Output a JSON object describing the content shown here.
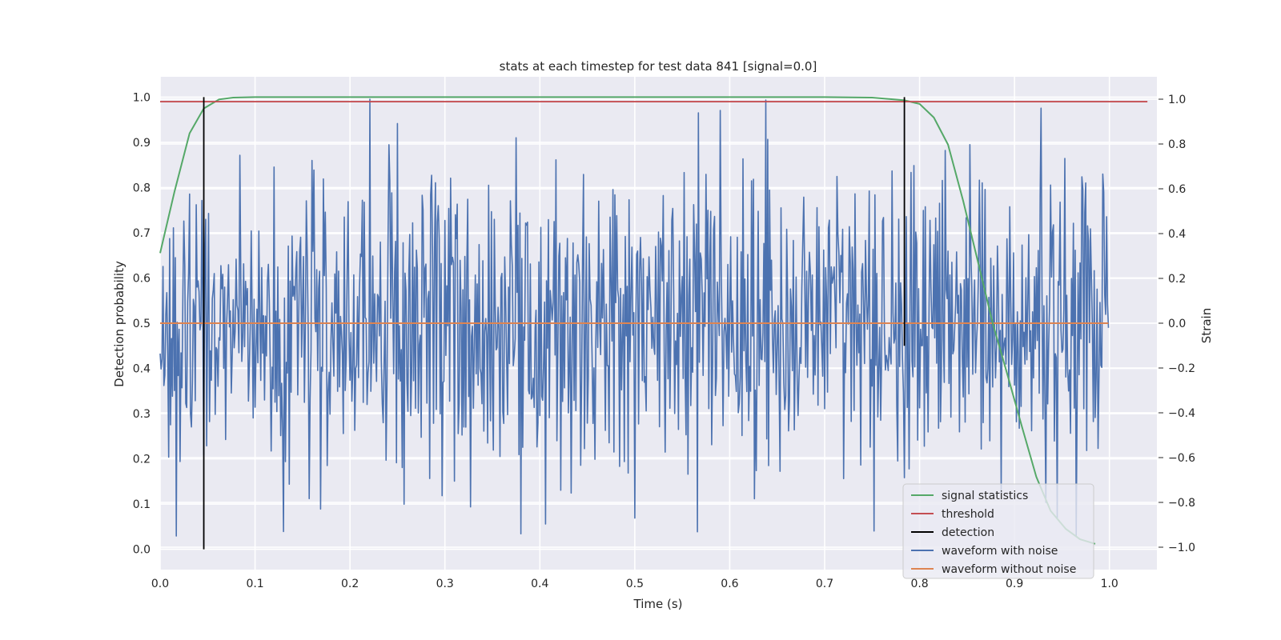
{
  "chart_data": {
    "type": "line",
    "title": "stats at each timestep for test data 841 [signal=0.0]",
    "xlabel": "Time (s)",
    "ylabel": "Detection probability",
    "y2label": "Strain",
    "xlim": [
      0.0,
      1.05
    ],
    "ylim": [
      -0.045,
      1.045
    ],
    "y2lim": [
      -1.1,
      1.1
    ],
    "xticks": [
      "0.0",
      "0.1",
      "0.2",
      "0.3",
      "0.4",
      "0.5",
      "0.6",
      "0.7",
      "0.8",
      "0.9",
      "1.0"
    ],
    "yticks": [
      "0.0",
      "0.1",
      "0.2",
      "0.3",
      "0.4",
      "0.5",
      "0.6",
      "0.7",
      "0.8",
      "0.9",
      "1.0"
    ],
    "y2ticks": [
      "−1.0",
      "−0.8",
      "−0.6",
      "−0.4",
      "−0.2",
      "0.0",
      "0.2",
      "0.4",
      "0.6",
      "0.8",
      "1.0"
    ],
    "grid": true,
    "background": "#eaeaf2",
    "legend_position": "bottom-right",
    "series": [
      {
        "name": "signal statistics",
        "color": "#55a868",
        "axis": "left",
        "x": [
          0.0,
          0.015,
          0.031,
          0.046,
          0.062,
          0.077,
          0.1,
          0.2,
          0.3,
          0.4,
          0.5,
          0.6,
          0.7,
          0.75,
          0.768,
          0.784,
          0.8,
          0.815,
          0.83,
          0.846,
          0.861,
          0.877,
          0.892,
          0.908,
          0.923,
          0.938,
          0.954,
          0.969,
          0.985
        ],
        "y": [
          0.655,
          0.79,
          0.92,
          0.975,
          0.995,
          0.999,
          1.0,
          1.0,
          1.0,
          1.0,
          1.0,
          1.0,
          1.0,
          0.999,
          0.996,
          0.993,
          0.985,
          0.955,
          0.895,
          0.77,
          0.64,
          0.5,
          0.39,
          0.27,
          0.16,
          0.085,
          0.045,
          0.022,
          0.012
        ]
      },
      {
        "name": "threshold",
        "color": "#c44e52",
        "axis": "left",
        "x": [
          0.0,
          1.04
        ],
        "y": [
          0.99,
          0.99
        ]
      },
      {
        "name": "detection",
        "color": "#000000",
        "axis": "left",
        "segments": [
          {
            "x": 0.046,
            "y0": 0.0,
            "y1": 1.0
          },
          {
            "x": 0.784,
            "y0": 0.45,
            "y1": 1.0
          }
        ]
      },
      {
        "name": "waveform with noise",
        "color": "#4c72b0",
        "axis": "right",
        "n_points": 1000,
        "x_range": [
          0.0,
          0.999
        ],
        "notable_points": [
          {
            "x": 0.221,
            "y": 1.0
          },
          {
            "x": 0.38,
            "y": -0.94
          },
          {
            "x": 0.13,
            "y": -0.93
          },
          {
            "x": 0.5,
            "y": -0.87
          },
          {
            "x": 0.59,
            "y": 0.95
          },
          {
            "x": 0.928,
            "y": 0.96
          },
          {
            "x": 0.933,
            "y": -0.8
          },
          {
            "x": 0.327,
            "y": -0.82
          }
        ],
        "amplitude_range": [
          -0.95,
          1.0
        ]
      },
      {
        "name": "waveform without noise",
        "color": "#dd8452",
        "axis": "right",
        "x": [
          0.0,
          0.999
        ],
        "y": [
          0.0,
          0.0
        ]
      }
    ]
  }
}
